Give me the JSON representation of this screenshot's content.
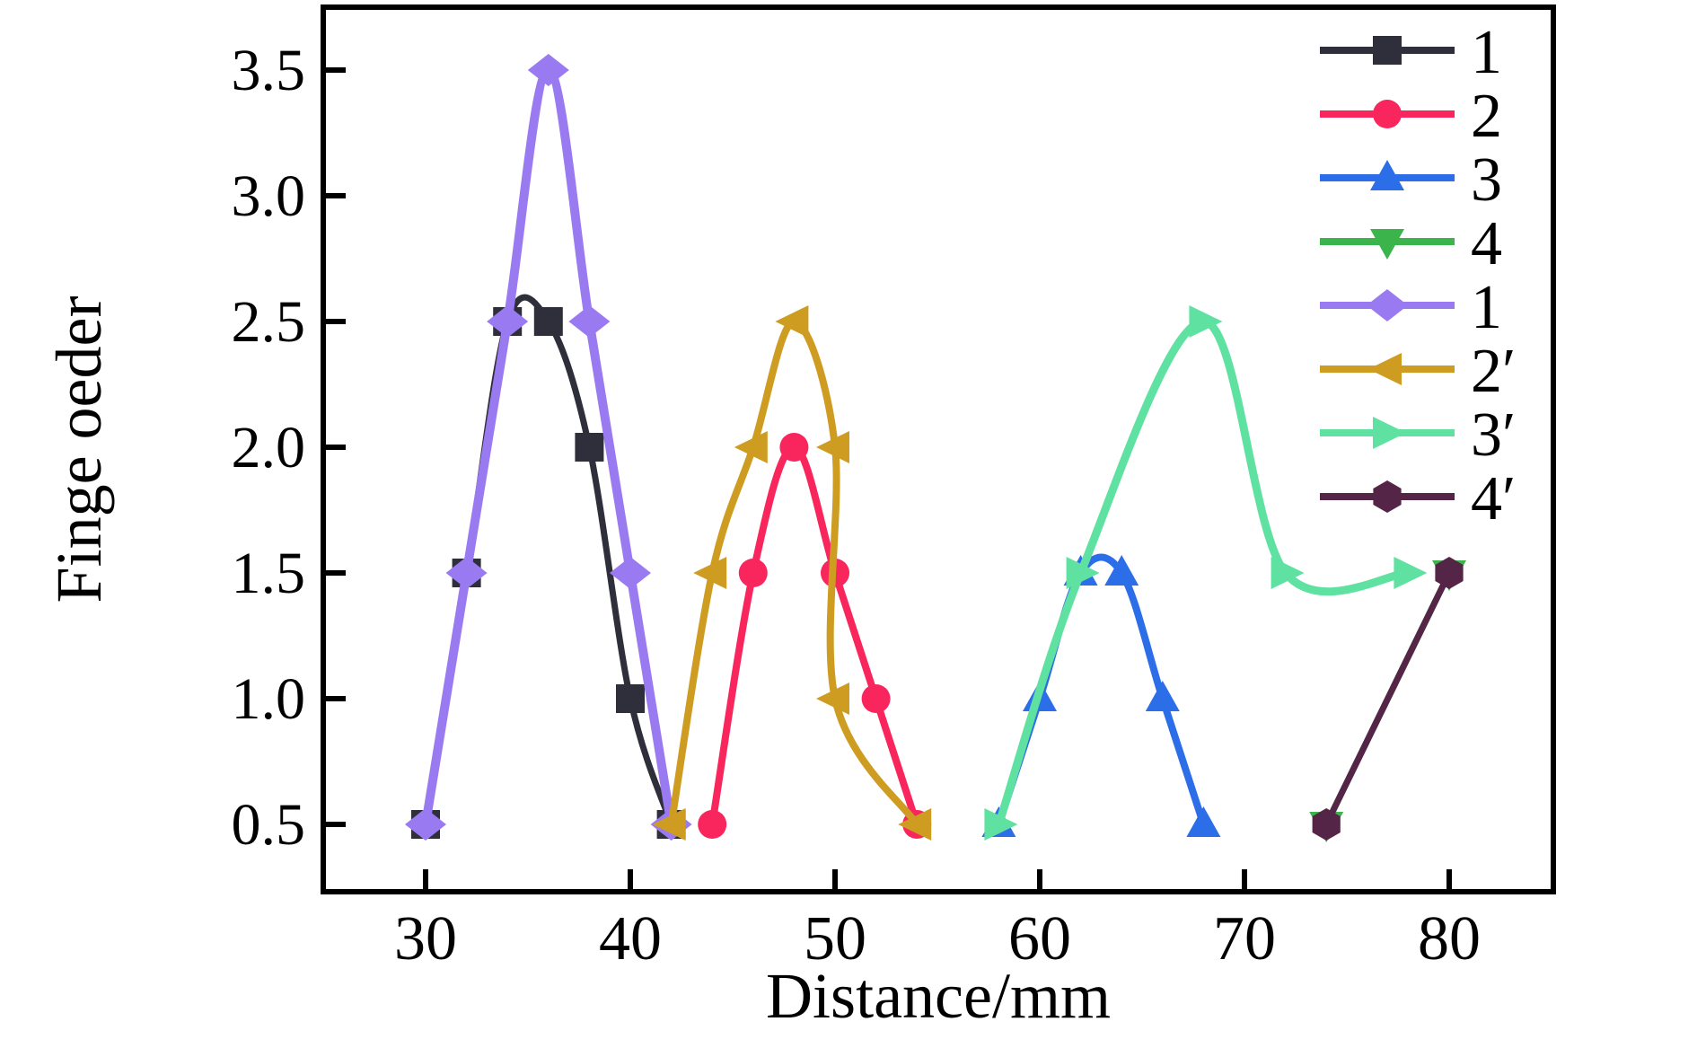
{
  "figure": {
    "background": "#ffffff",
    "axis_color": "#000000"
  },
  "chart_data": {
    "type": "line",
    "title": "",
    "xlabel": "Distance/mm",
    "ylabel": "Finge oeder",
    "xlim": [
      25,
      85
    ],
    "ylim": [
      0.25,
      3.75
    ],
    "grid": false,
    "legend_position": "top-right-inside",
    "x_ticks": [
      30,
      40,
      50,
      60,
      70,
      80
    ],
    "x_tick_labels": [
      "30",
      "40",
      "50",
      "60",
      "70",
      "80"
    ],
    "y_ticks": [
      0.5,
      1.0,
      1.5,
      2.0,
      2.5,
      3.0,
      3.5
    ],
    "y_tick_labels": [
      "0.5",
      "1.0",
      "1.5",
      "2.0",
      "2.5",
      "3.0",
      "3.5"
    ],
    "series": [
      {
        "name": "1",
        "color": "#2f2f3b",
        "marker": "square",
        "points": [
          [
            30,
            0.5
          ],
          [
            32,
            1.5
          ],
          [
            34,
            2.5
          ],
          [
            36,
            2.5
          ],
          [
            38,
            2.0
          ],
          [
            40,
            1.0
          ],
          [
            42,
            0.5
          ]
        ]
      },
      {
        "name": "2",
        "color": "#f8265c",
        "marker": "circle",
        "points": [
          [
            44,
            0.5
          ],
          [
            46,
            1.5
          ],
          [
            48,
            2.0
          ],
          [
            50,
            1.5
          ],
          [
            52,
            1.0
          ],
          [
            54,
            0.5
          ]
        ]
      },
      {
        "name": "3",
        "color": "#2c6ee8",
        "marker": "triangle-up",
        "points": [
          [
            58,
            0.5
          ],
          [
            60,
            1.0
          ],
          [
            62,
            1.5
          ],
          [
            64,
            1.5
          ],
          [
            66,
            1.0
          ],
          [
            68,
            0.5
          ]
        ]
      },
      {
        "name": "4",
        "color": "#3ab44b",
        "marker": "triangle-down",
        "points": [
          [
            74,
            0.5
          ],
          [
            80,
            1.5
          ]
        ]
      },
      {
        "name": "1",
        "color": "#9a7af0",
        "marker": "diamond",
        "points": [
          [
            30,
            0.5
          ],
          [
            32,
            1.5
          ],
          [
            34,
            2.5
          ],
          [
            36,
            3.5
          ],
          [
            38,
            2.5
          ],
          [
            40,
            1.5
          ],
          [
            42,
            0.5
          ]
        ]
      },
      {
        "name": "2′",
        "color": "#cf9c22",
        "marker": "triangle-left",
        "points": [
          [
            42,
            0.5
          ],
          [
            44,
            1.5
          ],
          [
            46,
            2.0
          ],
          [
            48,
            2.5
          ],
          [
            50,
            2.0
          ],
          [
            50,
            1.0
          ],
          [
            54,
            0.5
          ]
        ]
      },
      {
        "name": "3′",
        "color": "#5fe2a1",
        "marker": "triangle-right",
        "points": [
          [
            58,
            0.5
          ],
          [
            62,
            1.5
          ],
          [
            68,
            2.5
          ],
          [
            72,
            1.5
          ],
          [
            78,
            1.5
          ]
        ]
      },
      {
        "name": "4′",
        "color": "#552547",
        "marker": "hexagon",
        "points": [
          [
            74,
            0.5
          ],
          [
            80,
            1.5
          ]
        ]
      }
    ]
  }
}
